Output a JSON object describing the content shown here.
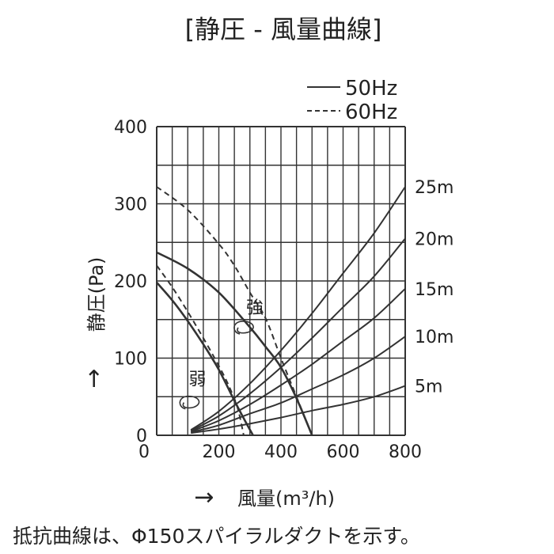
{
  "chart_data": {
    "type": "line",
    "title": "[静圧 - 風量曲線]",
    "xlabel": "風量(m³/h)",
    "ylabel": "静圧(Pa)",
    "xlim": [
      0,
      800
    ],
    "ylim": [
      0,
      400
    ],
    "x_ticks": [
      0,
      200,
      400,
      600,
      800
    ],
    "y_ticks": [
      0,
      100,
      200,
      300,
      400
    ],
    "grid": true,
    "legend_position": "top-right",
    "legend": [
      {
        "label": "50Hz",
        "style": "solid"
      },
      {
        "label": "60Hz",
        "style": "dashed"
      }
    ],
    "series": [
      {
        "name": "強 50Hz",
        "style": "solid",
        "x": [
          0,
          100,
          200,
          300,
          350,
          400,
          450,
          500
        ],
        "y": [
          237,
          216,
          185,
          140,
          115,
          88,
          48,
          0
        ]
      },
      {
        "name": "強 60Hz",
        "style": "dashed",
        "x": [
          0,
          100,
          200,
          250,
          300,
          350,
          400,
          450,
          500
        ],
        "y": [
          322,
          292,
          248,
          220,
          185,
          152,
          100,
          50,
          0
        ]
      },
      {
        "name": "弱 50Hz",
        "style": "solid",
        "x": [
          0,
          50,
          100,
          150,
          200,
          250,
          280,
          310
        ],
        "y": [
          198,
          175,
          148,
          118,
          85,
          45,
          22,
          0
        ]
      },
      {
        "name": "弱 60Hz",
        "style": "dashed",
        "x": [
          0,
          50,
          100,
          150,
          200,
          230,
          260,
          280
        ],
        "y": [
          220,
          192,
          160,
          126,
          90,
          66,
          36,
          0
        ]
      }
    ],
    "resistance_curves": [
      {
        "label": "5m",
        "x": [
          110,
          200,
          300,
          400,
          500,
          600,
          700,
          800
        ],
        "y": [
          3,
          8,
          15,
          23,
          32,
          40,
          50,
          64
        ]
      },
      {
        "label": "10m",
        "x": [
          110,
          200,
          300,
          400,
          500,
          600,
          700,
          800
        ],
        "y": [
          4,
          13,
          28,
          42,
          60,
          78,
          100,
          128
        ]
      },
      {
        "label": "15m",
        "x": [
          110,
          200,
          300,
          400,
          500,
          600,
          700,
          800
        ],
        "y": [
          5,
          19,
          40,
          65,
          92,
          122,
          152,
          190
        ]
      },
      {
        "label": "20m",
        "x": [
          110,
          200,
          300,
          400,
          500,
          600,
          700,
          800
        ],
        "y": [
          6,
          25,
          54,
          88,
          126,
          166,
          206,
          255
        ]
      },
      {
        "label": "25m",
        "x": [
          110,
          200,
          300,
          400,
          500,
          600,
          700,
          800
        ],
        "y": [
          7,
          31,
          67,
          110,
          158,
          210,
          262,
          322
        ]
      }
    ],
    "annotations": [
      {
        "label": "強",
        "x": 400,
        "y": 158
      },
      {
        "label": "弱",
        "x": 215,
        "y": 65
      }
    ],
    "arrows": [
      "→",
      "→"
    ],
    "footnote": "抵抗曲線は、Φ150スパイラルダクトを示す。"
  }
}
